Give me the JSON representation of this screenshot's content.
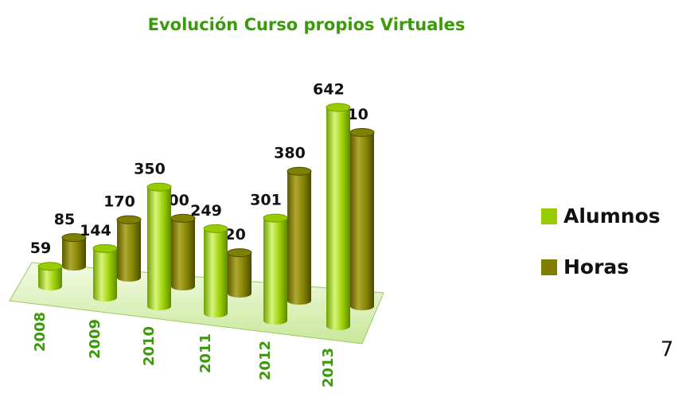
{
  "chart_data": {
    "type": "bar3d",
    "title": "Evolución Curso propios Virtuales",
    "categories": [
      "2008",
      "2009",
      "2010",
      "2011",
      "2012",
      "2013"
    ],
    "series": [
      {
        "name": "Alumnos",
        "color": "#99cc00",
        "values": [
          59,
          144,
          350,
          249,
          301,
          642
        ]
      },
      {
        "name": "Horas",
        "color": "#808000",
        "values": [
          85,
          170,
          200,
          120,
          380,
          510
        ]
      }
    ],
    "legend": "right",
    "page_number": "7"
  }
}
